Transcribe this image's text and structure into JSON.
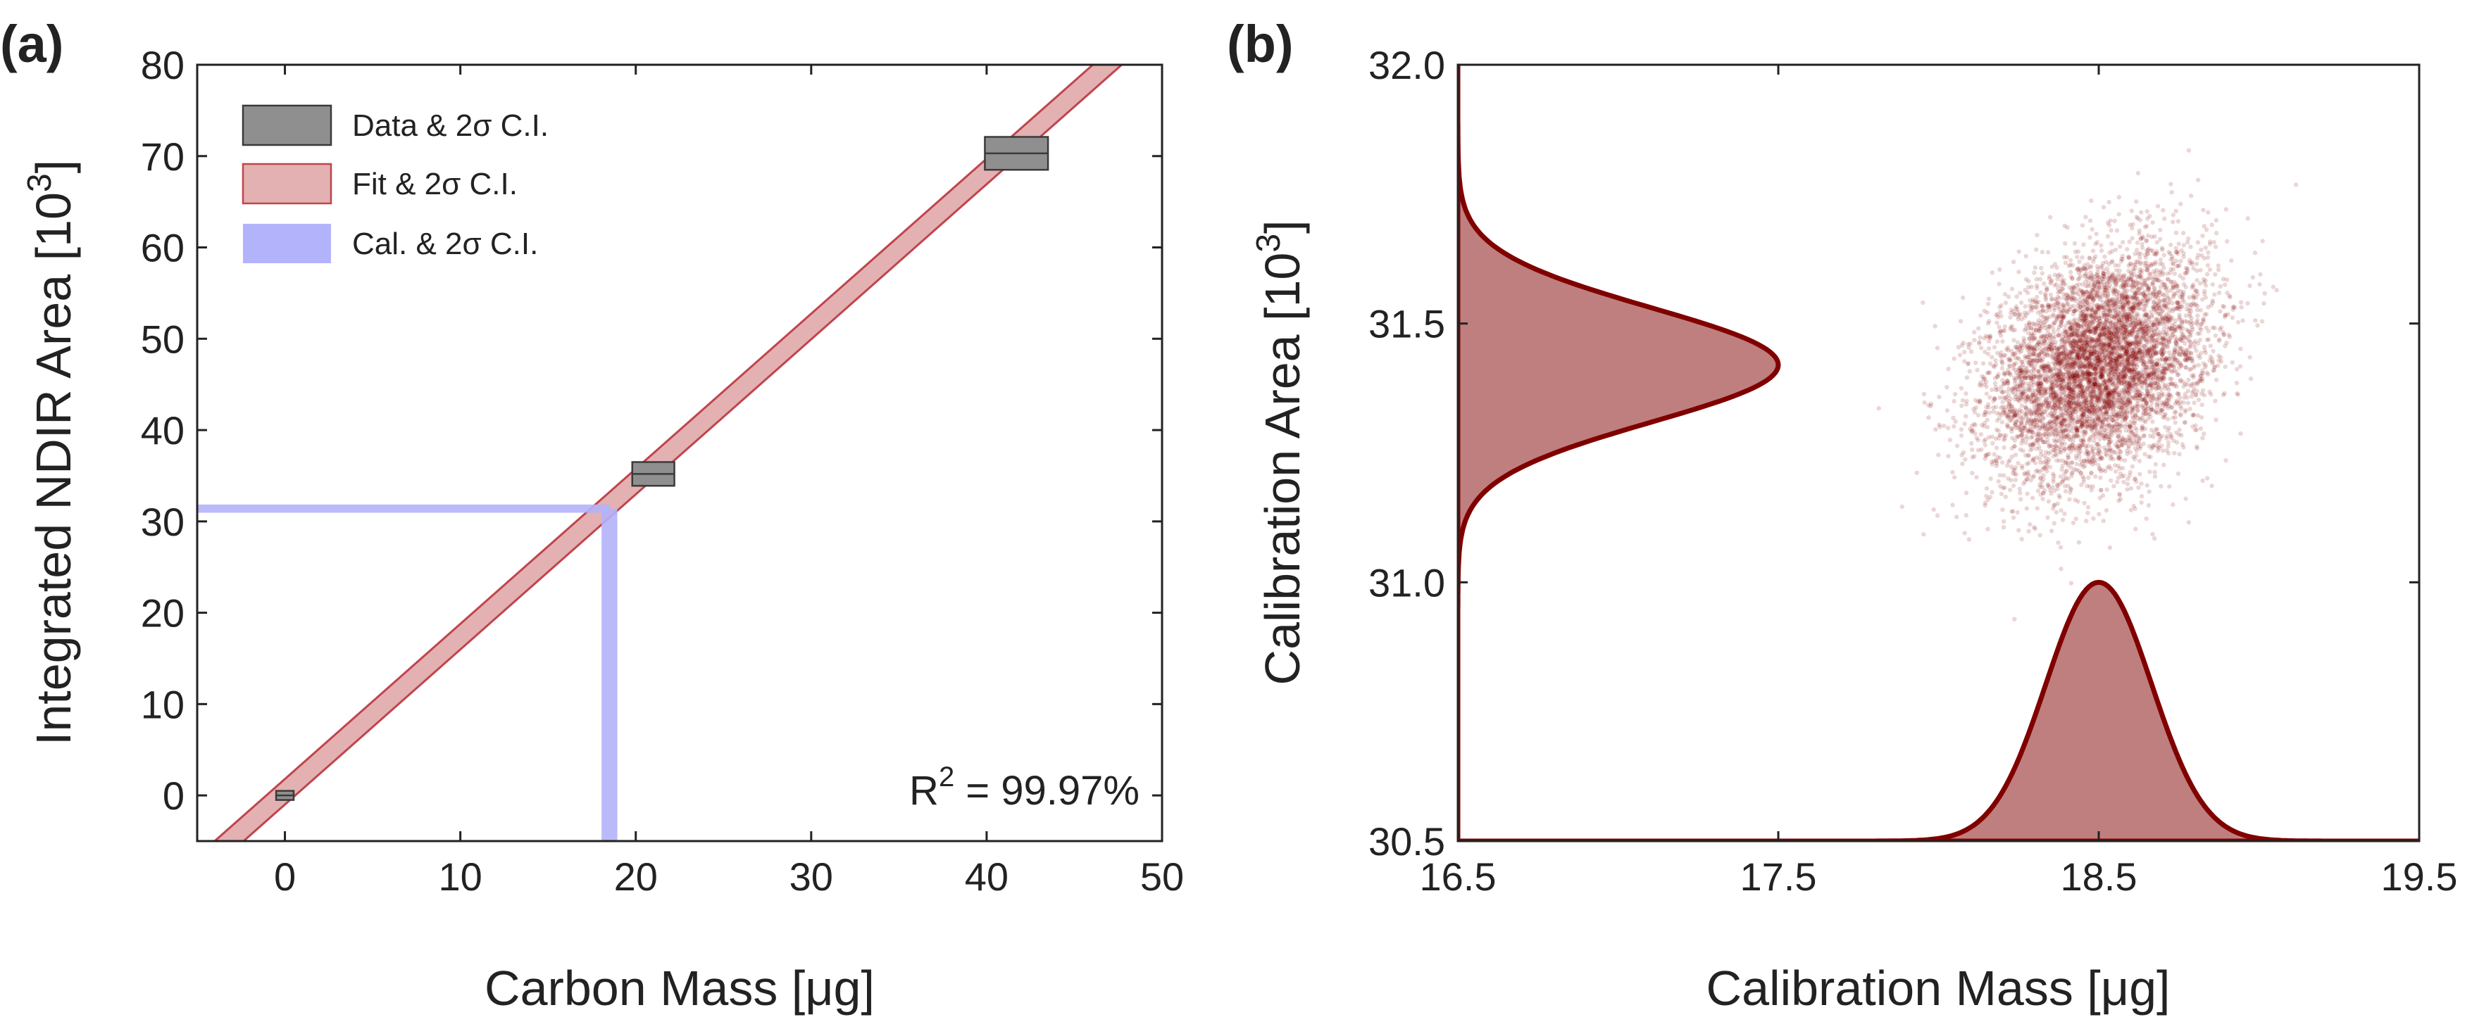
{
  "colors": {
    "fit_fill": "#e3b1b1",
    "fit_edge": "#c0444d",
    "data_fill": "#8f8f8f",
    "data_edge": "#3a3a3a",
    "cal_fill": "#b2b3fb",
    "dark_red": "#800000",
    "axis": "#222222"
  },
  "chart_data": [
    {
      "panel": "(a)",
      "type": "scatter",
      "title": "",
      "xlabel": "Carbon Mass [μg]",
      "ylabel_main": "Integrated NDIR Area [10",
      "ylabel_sup": "3",
      "ylabel_end": "]",
      "xlim": [
        -5,
        50
      ],
      "ylim": [
        -5,
        80
      ],
      "xticks": [
        0,
        10,
        20,
        30,
        40,
        50
      ],
      "yticks": [
        0,
        10,
        20,
        30,
        40,
        50,
        60,
        70,
        80
      ],
      "grid": false,
      "legend_position": "top-left",
      "legend": [
        {
          "label": "Data & 2σ C.I.",
          "kind": "data"
        },
        {
          "label": "Fit & 2σ C.I.",
          "kind": "fit"
        },
        {
          "label": "Cal. & 2σ C.I.",
          "kind": "cal"
        }
      ],
      "fit": {
        "slope": 1.698,
        "intercept": 0.4,
        "band_halfwidth": 1.4
      },
      "data_points": [
        {
          "x": 0.0,
          "y": 0.0,
          "x_halfwidth": 0.5,
          "y_halfwidth": 0.5
        },
        {
          "x": 21.0,
          "y": 35.2,
          "x_halfwidth": 1.2,
          "y_halfwidth": 1.3
        },
        {
          "x": 41.7,
          "y": 70.3,
          "x_halfwidth": 1.8,
          "y_halfwidth": 1.8
        }
      ],
      "calibration": {
        "area": 31.4,
        "area_halfwidth": 0.45,
        "mass": 18.5,
        "mass_halfwidth": 0.45
      },
      "annotation": {
        "prefix": "R",
        "sup": "2",
        "text": " = 99.97%"
      }
    },
    {
      "panel": "(b)",
      "type": "scatter",
      "title": "",
      "xlabel": "Calibration Mass [μg]",
      "ylabel_main": "Calibration Area [10",
      "ylabel_sup": "3",
      "ylabel_end": "]",
      "xlim": [
        16.5,
        19.5
      ],
      "ylim": [
        30.5,
        32.0
      ],
      "xticks": [
        "16.5",
        "17.5",
        "18.5",
        "19.5"
      ],
      "yticks": [
        "30.5",
        "31.0",
        "31.5",
        "32.0"
      ],
      "grid": false,
      "cloud": {
        "mean_x": 18.5,
        "mean_y": 31.42,
        "sd_x": 0.17,
        "sd_y": 0.11,
        "correlation": 0.3,
        "n_points": 6000
      },
      "marginal_x": {
        "mean": 18.5,
        "sd": 0.165,
        "peak_y": 31.0
      },
      "marginal_y": {
        "mean": 31.42,
        "sd": 0.11,
        "peak_x": 17.5
      }
    }
  ]
}
